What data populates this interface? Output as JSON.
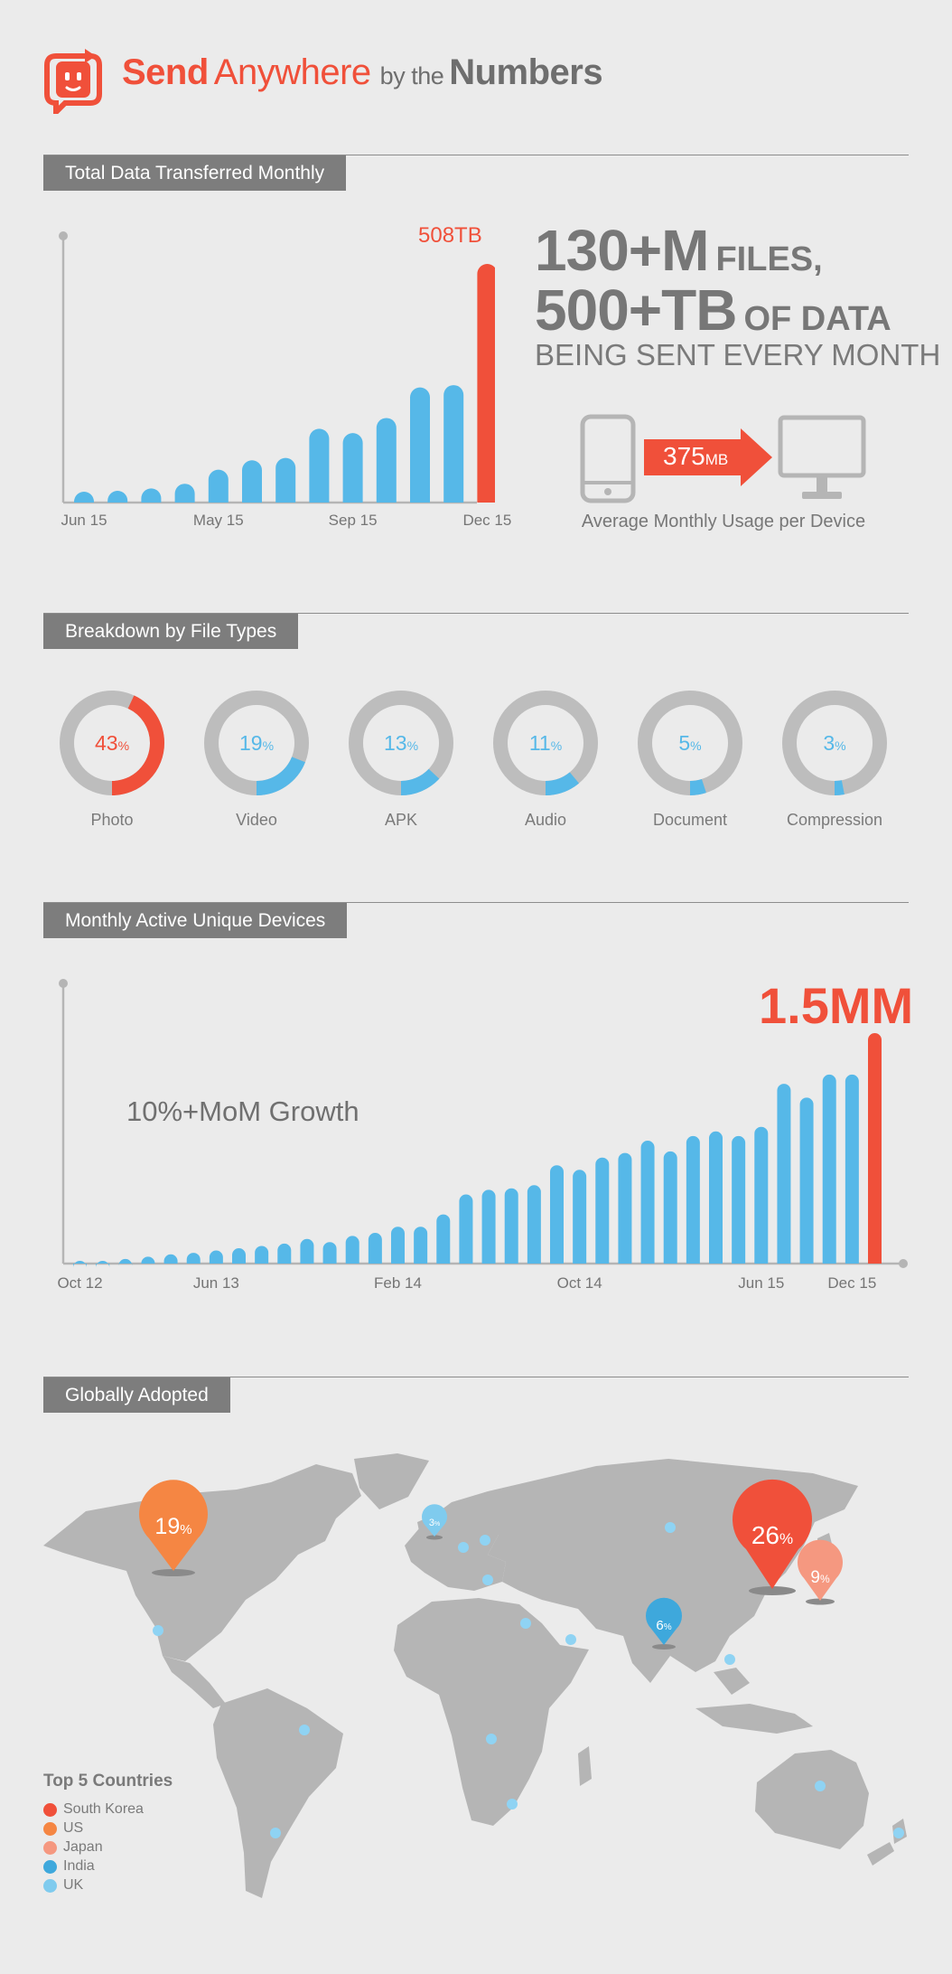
{
  "header": {
    "brand_send": "Send",
    "brand_anywhere": "Anywhere",
    "by_the": "by the",
    "numbers": "Numbers",
    "accent": "#f0503a"
  },
  "sections": {
    "s1": "Total Data Transferred Monthly",
    "s2": "Breakdown by File Types",
    "s3": "Monthly Active Unique Devices",
    "s4": "Globally Adopted"
  },
  "stats": {
    "files_num": "130+M",
    "files_word": "FILES,",
    "data_num": "500+TB",
    "data_word": "OF DATA",
    "sentence": "BEING SENT EVERY MONTH",
    "usage_value": "375",
    "usage_unit": "MB",
    "usage_caption": "Average Monthly Usage per Device",
    "icons": [
      "phone-icon",
      "arrow-icon",
      "monitor-icon"
    ]
  },
  "chart_data": [
    {
      "type": "bar",
      "title": "Total Data Transferred Monthly",
      "unit": "TB",
      "categories": [
        "Jun 15",
        "",
        "",
        "",
        "May 15",
        "",
        "",
        "",
        "Sep 15",
        "",
        "",
        "",
        "Dec 15"
      ],
      "tick_labels": [
        "Jun 15",
        "May 15",
        "Sep 15",
        "Dec 15"
      ],
      "values": [
        23,
        25,
        30,
        40,
        70,
        90,
        95,
        157,
        148,
        180,
        245,
        250,
        508
      ],
      "value_scale_max": 508,
      "highlight_label": "508TB",
      "colors": {
        "bar": "#56b8e8",
        "highlight": "#f0503a"
      }
    },
    {
      "type": "pie",
      "title": "Breakdown by File Types",
      "slices": [
        {
          "label": "Photo",
          "value": 43,
          "display": "43",
          "color": "#f0503a"
        },
        {
          "label": "Video",
          "value": 19,
          "display": "19",
          "color": "#56b8e8"
        },
        {
          "label": "APK",
          "value": 13,
          "display": "13",
          "color": "#56b8e8"
        },
        {
          "label": "Audio",
          "value": 11,
          "display": "11",
          "color": "#56b8e8"
        },
        {
          "label": "Document",
          "value": 5,
          "display": "5",
          "color": "#56b8e8"
        },
        {
          "label": "Compression",
          "value": 3,
          "display": "3",
          "color": "#56b8e8"
        }
      ],
      "percent_sign": "%",
      "ring_color": "#bdbdbd"
    },
    {
      "type": "bar",
      "title": "Monthly Active Unique Devices",
      "tick_labels": [
        "Oct 12",
        "Jun 13",
        "Feb 14",
        "Oct 14",
        "Jun 15",
        "Dec 15"
      ],
      "tick_index": [
        0,
        6,
        14,
        22,
        30,
        34
      ],
      "values": [
        0.01,
        0.015,
        0.03,
        0.045,
        0.06,
        0.07,
        0.085,
        0.1,
        0.115,
        0.13,
        0.16,
        0.14,
        0.18,
        0.2,
        0.24,
        0.24,
        0.32,
        0.45,
        0.48,
        0.49,
        0.51,
        0.64,
        0.61,
        0.69,
        0.72,
        0.8,
        0.73,
        0.83,
        0.86,
        0.83,
        0.89,
        1.17,
        1.08,
        1.23,
        1.23,
        1.5
      ],
      "value_scale_max": 1.5,
      "annotation": "10%+MoM Growth",
      "highlight_label": "1.5MM",
      "colors": {
        "bar": "#56b8e8",
        "highlight": "#f0503a"
      }
    }
  ],
  "map": {
    "pins": [
      {
        "country": "South Korea",
        "value": "26",
        "color": "#f0503a"
      },
      {
        "country": "US",
        "value": "19",
        "color": "#f58643"
      },
      {
        "country": "Japan",
        "value": "9",
        "color": "#f59880"
      },
      {
        "country": "India",
        "value": "6",
        "color": "#3ea8dc"
      },
      {
        "country": "UK",
        "value": "3",
        "color": "#7fcbee"
      }
    ],
    "percent_sign": "%",
    "legend_title": "Top 5 Countries",
    "legend": [
      {
        "label": "South Korea",
        "color": "#f0503a"
      },
      {
        "label": "US",
        "color": "#f58643"
      },
      {
        "label": "Japan",
        "color": "#f59880"
      },
      {
        "label": "India",
        "color": "#3ea8dc"
      },
      {
        "label": "UK",
        "color": "#7fcbee"
      }
    ]
  }
}
